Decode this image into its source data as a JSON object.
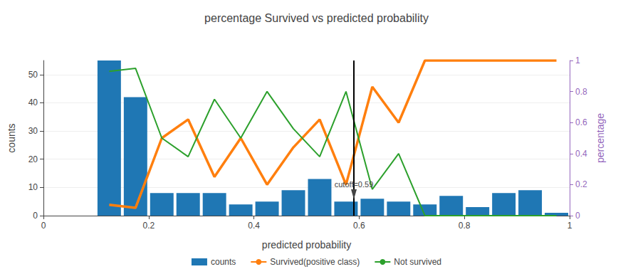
{
  "chart_data": {
    "type": "bar",
    "title": "percentage Survived vs predicted probability",
    "x_label": "predicted probability",
    "y_label": "counts",
    "y2_label": "percentage",
    "bins": [
      0.1,
      0.15,
      0.2,
      0.25,
      0.3,
      0.35,
      0.4,
      0.45,
      0.5,
      0.55,
      0.6,
      0.65,
      0.7,
      0.75,
      0.8,
      0.85,
      0.9,
      0.95,
      1.0
    ],
    "series": [
      {
        "name": "counts",
        "type": "bar",
        "color": "#1f77b4",
        "values": [
          55,
          42,
          8,
          8,
          8,
          4,
          5,
          9,
          13,
          5,
          6,
          5,
          4,
          7,
          3,
          8,
          9,
          1
        ]
      },
      {
        "name": "Survived(positive class)",
        "type": "line",
        "axis": "y2",
        "color": "#ff7f0e",
        "x": [
          0.125,
          0.175,
          0.225,
          0.275,
          0.325,
          0.375,
          0.425,
          0.475,
          0.525,
          0.575,
          0.625,
          0.675,
          0.725,
          0.775,
          0.825,
          0.875,
          0.925,
          0.975
        ],
        "values": [
          0.07,
          0.05,
          0.5,
          0.62,
          0.25,
          0.5,
          0.2,
          0.44,
          0.62,
          0.2,
          0.83,
          0.6,
          1,
          1,
          1,
          1,
          1,
          1
        ]
      },
      {
        "name": "Not survived",
        "type": "line",
        "axis": "y2",
        "color": "#2ca02c",
        "x": [
          0.125,
          0.175,
          0.225,
          0.275,
          0.325,
          0.375,
          0.425,
          0.475,
          0.525,
          0.575,
          0.625,
          0.675,
          0.725,
          0.775,
          0.825,
          0.875,
          0.925,
          0.975
        ],
        "values": [
          0.93,
          0.95,
          0.5,
          0.38,
          0.75,
          0.5,
          0.8,
          0.56,
          0.38,
          0.8,
          0.17,
          0.4,
          0,
          0,
          0,
          0,
          0,
          0
        ]
      }
    ],
    "annotations": [
      {
        "text": "cutoff=0.59",
        "x": 0.59
      }
    ],
    "xlim": [
      0,
      1
    ],
    "xticks": [
      0,
      0.2,
      0.4,
      0.6,
      0.8,
      1
    ],
    "ylim": [
      0,
      55
    ],
    "yticks": [
      0,
      10,
      20,
      30,
      40,
      50
    ],
    "y2lim": [
      0,
      1
    ],
    "y2ticks": [
      0,
      0.2,
      0.4,
      0.6,
      0.8,
      1
    ],
    "grid": true,
    "legend": "bottom"
  }
}
